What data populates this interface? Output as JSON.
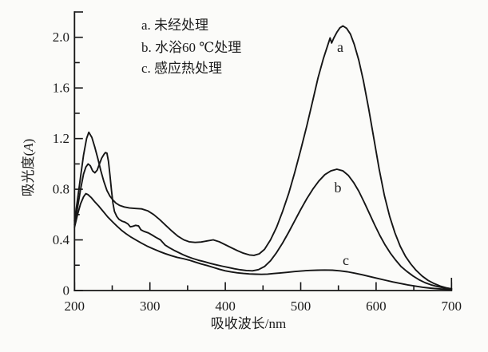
{
  "figure": {
    "background": "#fbfbf9",
    "line_color": "#161616"
  },
  "legend": {
    "items": [
      {
        "label": "a. 未经处理"
      },
      {
        "label": "b. 水浴60 ℃处理"
      },
      {
        "label": "c. 感应热处理"
      }
    ]
  },
  "axes": {
    "x": {
      "label": "吸收波长/nm",
      "min": 200,
      "max": 700,
      "major": [
        {
          "v": 200,
          "t": "200"
        },
        {
          "v": 300,
          "t": "300"
        },
        {
          "v": 400,
          "t": "400"
        },
        {
          "v": 500,
          "t": "500"
        },
        {
          "v": 600,
          "t": "600"
        },
        {
          "v": 700,
          "t": "700"
        }
      ],
      "minor": [
        250,
        350,
        450,
        550,
        650
      ]
    },
    "y": {
      "label_prefix": "吸光度(",
      "label_var": "A",
      "label_suffix": ")",
      "min": 0,
      "max": 2.2,
      "major": [
        {
          "v": 0,
          "t": "0"
        },
        {
          "v": 0.4,
          "t": "0.4"
        },
        {
          "v": 0.8,
          "t": "0.8"
        },
        {
          "v": 1.2,
          "t": "1.2"
        },
        {
          "v": 1.6,
          "t": "1.6"
        },
        {
          "v": 2.0,
          "t": "2.0"
        }
      ],
      "minor": [
        0.2,
        0.6,
        1.0,
        1.4,
        1.8
      ]
    }
  },
  "curve_letters": {
    "a": "a",
    "b": "b",
    "c": "c"
  },
  "chart_data": {
    "type": "line",
    "title": "",
    "xlabel": "吸收波长/nm",
    "ylabel": "吸光度(A)",
    "xlim": [
      200,
      700
    ],
    "ylim": [
      0,
      2.2
    ],
    "grid": false,
    "legend_position": "top-left-inside",
    "series": [
      {
        "id": "a",
        "name": "未经处理",
        "legend": "a. 未经处理",
        "peak": {
          "x": 555,
          "y": 2.09
        },
        "points": [
          [
            200,
            0.55
          ],
          [
            204,
            0.72
          ],
          [
            208,
            0.9
          ],
          [
            212,
            1.07
          ],
          [
            216,
            1.2
          ],
          [
            219,
            1.25
          ],
          [
            223,
            1.21
          ],
          [
            227,
            1.13
          ],
          [
            231,
            1.04
          ],
          [
            235,
            0.945
          ],
          [
            239,
            0.86
          ],
          [
            243,
            0.79
          ],
          [
            247,
            0.745
          ],
          [
            251,
            0.715
          ],
          [
            255,
            0.69
          ],
          [
            260,
            0.672
          ],
          [
            266,
            0.66
          ],
          [
            273,
            0.652
          ],
          [
            281,
            0.648
          ],
          [
            289,
            0.645
          ],
          [
            297,
            0.63
          ],
          [
            305,
            0.6
          ],
          [
            313,
            0.56
          ],
          [
            321,
            0.515
          ],
          [
            329,
            0.47
          ],
          [
            337,
            0.43
          ],
          [
            345,
            0.4
          ],
          [
            352,
            0.385
          ],
          [
            360,
            0.38
          ],
          [
            368,
            0.383
          ],
          [
            376,
            0.392
          ],
          [
            384,
            0.4
          ],
          [
            392,
            0.385
          ],
          [
            400,
            0.362
          ],
          [
            408,
            0.338
          ],
          [
            416,
            0.315
          ],
          [
            424,
            0.295
          ],
          [
            432,
            0.281
          ],
          [
            438,
            0.278
          ],
          [
            445,
            0.29
          ],
          [
            452,
            0.325
          ],
          [
            460,
            0.4
          ],
          [
            468,
            0.5
          ],
          [
            476,
            0.625
          ],
          [
            484,
            0.765
          ],
          [
            492,
            0.93
          ],
          [
            500,
            1.11
          ],
          [
            508,
            1.3
          ],
          [
            516,
            1.5
          ],
          [
            523,
            1.68
          ],
          [
            530,
            1.83
          ],
          [
            536,
            1.94
          ],
          [
            539,
            1.995
          ],
          [
            541,
            1.955
          ],
          [
            544,
            1.995
          ],
          [
            548,
            2.04
          ],
          [
            552,
            2.075
          ],
          [
            556,
            2.09
          ],
          [
            561,
            2.07
          ],
          [
            566,
            2.025
          ],
          [
            571,
            1.945
          ],
          [
            577,
            1.82
          ],
          [
            583,
            1.66
          ],
          [
            590,
            1.44
          ],
          [
            597,
            1.2
          ],
          [
            604,
            0.96
          ],
          [
            611,
            0.75
          ],
          [
            618,
            0.585
          ],
          [
            625,
            0.455
          ],
          [
            632,
            0.35
          ],
          [
            639,
            0.27
          ],
          [
            646,
            0.21
          ],
          [
            653,
            0.16
          ],
          [
            661,
            0.115
          ],
          [
            669,
            0.08
          ],
          [
            677,
            0.055
          ],
          [
            685,
            0.035
          ],
          [
            693,
            0.022
          ],
          [
            700,
            0.013
          ]
        ]
      },
      {
        "id": "b",
        "name": "水浴60 ℃处理",
        "legend": "b. 水浴60 ℃处理",
        "peak": {
          "x": 548,
          "y": 0.96
        },
        "points": [
          [
            200,
            0.52
          ],
          [
            204,
            0.655
          ],
          [
            208,
            0.8
          ],
          [
            212,
            0.92
          ],
          [
            215,
            0.975
          ],
          [
            218,
            1.0
          ],
          [
            221,
            0.985
          ],
          [
            224,
            0.945
          ],
          [
            227,
            0.93
          ],
          [
            230,
            0.95
          ],
          [
            233,
            1.0
          ],
          [
            236,
            1.045
          ],
          [
            239,
            1.075
          ],
          [
            241,
            1.09
          ],
          [
            243,
            1.085
          ],
          [
            245,
            1.02
          ],
          [
            247,
            0.91
          ],
          [
            249,
            0.79
          ],
          [
            251,
            0.69
          ],
          [
            253,
            0.625
          ],
          [
            256,
            0.585
          ],
          [
            259,
            0.562
          ],
          [
            263,
            0.548
          ],
          [
            267,
            0.54
          ],
          [
            271,
            0.525
          ],
          [
            274,
            0.503
          ],
          [
            277,
            0.507
          ],
          [
            281,
            0.515
          ],
          [
            285,
            0.51
          ],
          [
            288,
            0.48
          ],
          [
            292,
            0.468
          ],
          [
            298,
            0.455
          ],
          [
            303,
            0.438
          ],
          [
            308,
            0.42
          ],
          [
            314,
            0.4
          ],
          [
            320,
            0.36
          ],
          [
            326,
            0.338
          ],
          [
            332,
            0.318
          ],
          [
            338,
            0.3
          ],
          [
            344,
            0.283
          ],
          [
            350,
            0.268
          ],
          [
            357,
            0.253
          ],
          [
            364,
            0.24
          ],
          [
            372,
            0.228
          ],
          [
            380,
            0.215
          ],
          [
            388,
            0.203
          ],
          [
            396,
            0.192
          ],
          [
            404,
            0.182
          ],
          [
            412,
            0.172
          ],
          [
            420,
            0.164
          ],
          [
            428,
            0.158
          ],
          [
            436,
            0.156
          ],
          [
            444,
            0.165
          ],
          [
            452,
            0.19
          ],
          [
            460,
            0.235
          ],
          [
            468,
            0.3
          ],
          [
            476,
            0.375
          ],
          [
            484,
            0.46
          ],
          [
            492,
            0.55
          ],
          [
            500,
            0.64
          ],
          [
            508,
            0.725
          ],
          [
            516,
            0.8
          ],
          [
            524,
            0.865
          ],
          [
            532,
            0.915
          ],
          [
            540,
            0.945
          ],
          [
            548,
            0.958
          ],
          [
            556,
            0.945
          ],
          [
            563,
            0.91
          ],
          [
            570,
            0.855
          ],
          [
            577,
            0.785
          ],
          [
            584,
            0.7
          ],
          [
            591,
            0.61
          ],
          [
            598,
            0.52
          ],
          [
            605,
            0.435
          ],
          [
            612,
            0.36
          ],
          [
            619,
            0.295
          ],
          [
            626,
            0.24
          ],
          [
            633,
            0.19
          ],
          [
            641,
            0.15
          ],
          [
            649,
            0.115
          ],
          [
            657,
            0.085
          ],
          [
            665,
            0.062
          ],
          [
            673,
            0.045
          ],
          [
            681,
            0.032
          ],
          [
            689,
            0.022
          ],
          [
            700,
            0.014
          ]
        ]
      },
      {
        "id": "c",
        "name": "感应热处理",
        "legend": "c. 感应热处理",
        "peak": {
          "x": 535,
          "y": 0.16
        },
        "points": [
          [
            200,
            0.5
          ],
          [
            204,
            0.6
          ],
          [
            208,
            0.685
          ],
          [
            212,
            0.74
          ],
          [
            215,
            0.765
          ],
          [
            218,
            0.757
          ],
          [
            222,
            0.735
          ],
          [
            227,
            0.7
          ],
          [
            232,
            0.668
          ],
          [
            238,
            0.625
          ],
          [
            244,
            0.582
          ],
          [
            250,
            0.545
          ],
          [
            256,
            0.51
          ],
          [
            262,
            0.478
          ],
          [
            268,
            0.45
          ],
          [
            275,
            0.422
          ],
          [
            282,
            0.398
          ],
          [
            289,
            0.374
          ],
          [
            296,
            0.352
          ],
          [
            304,
            0.33
          ],
          [
            312,
            0.31
          ],
          [
            320,
            0.292
          ],
          [
            328,
            0.276
          ],
          [
            336,
            0.262
          ],
          [
            344,
            0.252
          ],
          [
            352,
            0.24
          ],
          [
            360,
            0.225
          ],
          [
            368,
            0.21
          ],
          [
            376,
            0.197
          ],
          [
            384,
            0.183
          ],
          [
            392,
            0.168
          ],
          [
            400,
            0.156
          ],
          [
            408,
            0.147
          ],
          [
            416,
            0.14
          ],
          [
            424,
            0.135
          ],
          [
            432,
            0.131
          ],
          [
            440,
            0.129
          ],
          [
            448,
            0.128
          ],
          [
            456,
            0.13
          ],
          [
            464,
            0.134
          ],
          [
            472,
            0.138
          ],
          [
            482,
            0.144
          ],
          [
            492,
            0.15
          ],
          [
            502,
            0.155
          ],
          [
            512,
            0.159
          ],
          [
            522,
            0.161
          ],
          [
            532,
            0.162
          ],
          [
            542,
            0.161
          ],
          [
            552,
            0.156
          ],
          [
            562,
            0.148
          ],
          [
            572,
            0.137
          ],
          [
            582,
            0.124
          ],
          [
            592,
            0.11
          ],
          [
            602,
            0.096
          ],
          [
            612,
            0.082
          ],
          [
            622,
            0.068
          ],
          [
            632,
            0.056
          ],
          [
            642,
            0.045
          ],
          [
            652,
            0.035
          ],
          [
            662,
            0.026
          ],
          [
            672,
            0.019
          ],
          [
            682,
            0.014
          ],
          [
            692,
            0.01
          ],
          [
            700,
            0.008
          ]
        ]
      }
    ]
  }
}
